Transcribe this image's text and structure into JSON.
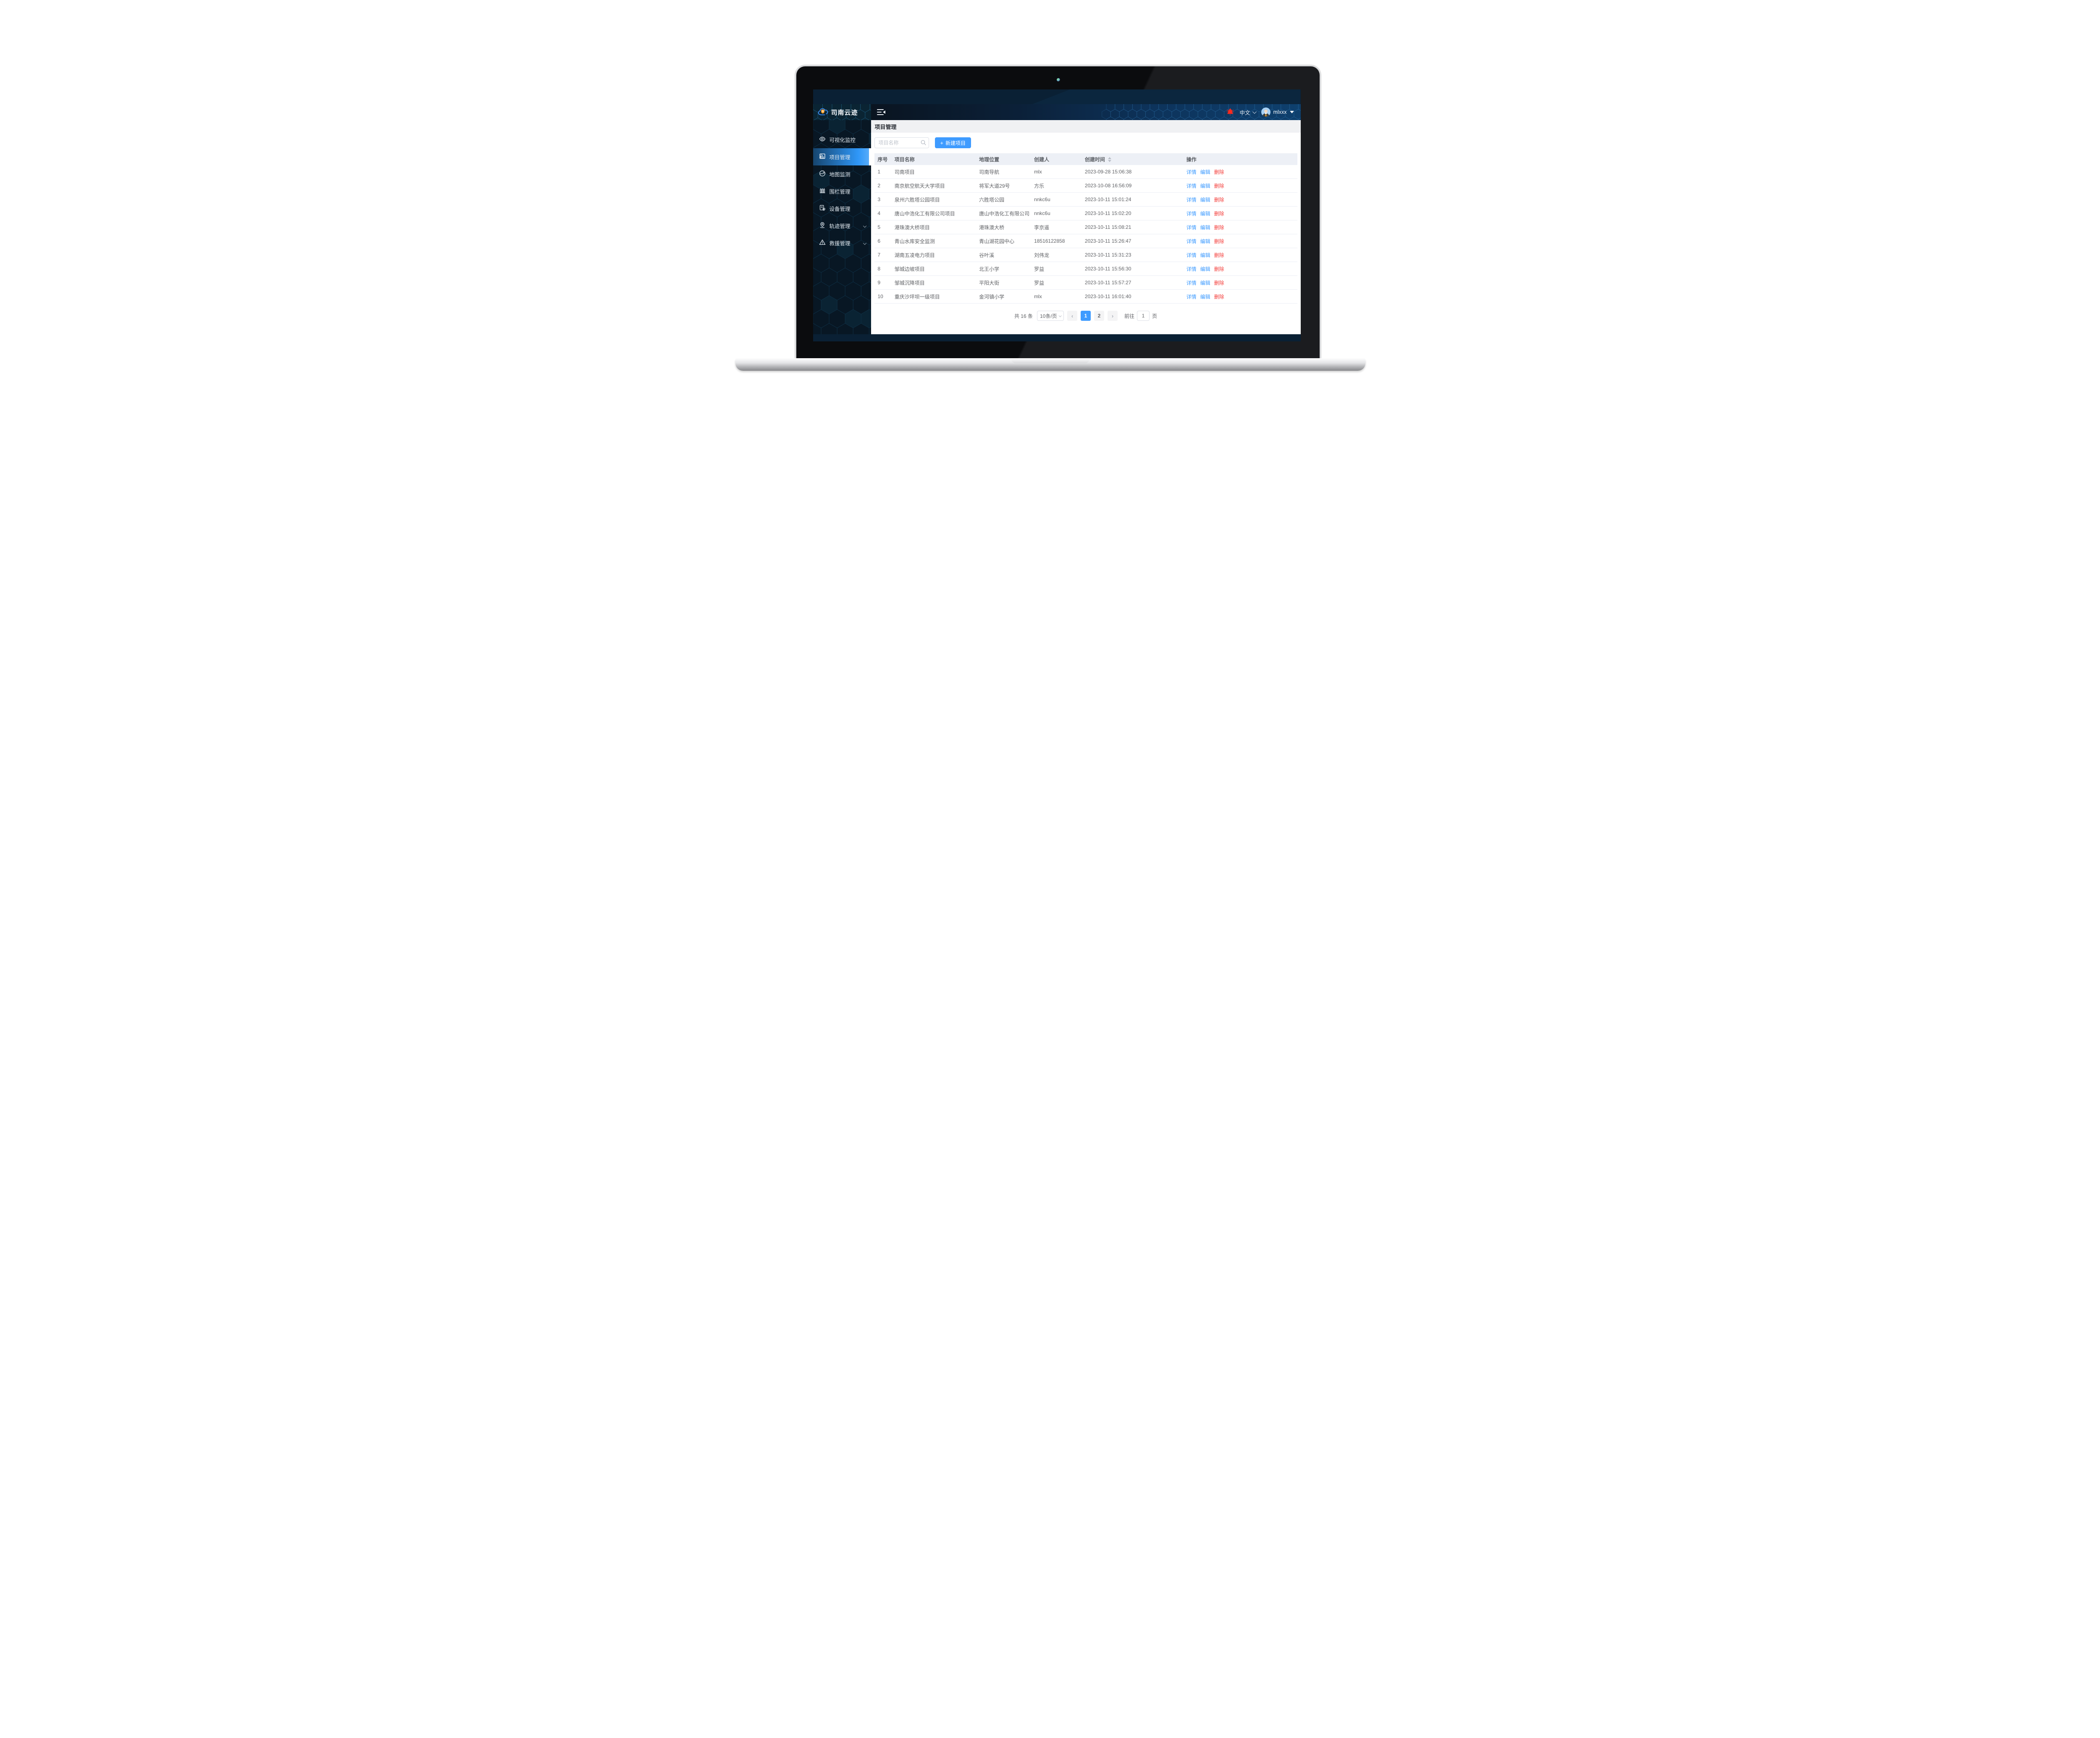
{
  "app": {
    "logo_title": "司南云迹",
    "language_label": "中文",
    "username": "mlxxx"
  },
  "colors": {
    "accent_blue": "#3e9bff",
    "danger_red": "#f4403d",
    "header_navy": "#0e406e",
    "sidebar_dark": "#081724",
    "alarm_red": "#fa2a1e"
  },
  "sidebar": {
    "items": [
      {
        "label": "可视化监控",
        "icon": "eye-icon",
        "selected": false,
        "has_chevron": false
      },
      {
        "label": "项目管理",
        "icon": "project-chart-icon",
        "selected": true,
        "has_chevron": false
      },
      {
        "label": "地图监测",
        "icon": "map-globe-icon",
        "selected": false,
        "has_chevron": false
      },
      {
        "label": "围栏管理",
        "icon": "fence-icon",
        "selected": false,
        "has_chevron": false
      },
      {
        "label": "设备管理",
        "icon": "device-icon",
        "selected": false,
        "has_chevron": false
      },
      {
        "label": "轨迹管理",
        "icon": "track-pin-icon",
        "selected": false,
        "has_chevron": true
      },
      {
        "label": "救援管理",
        "icon": "rescue-warning-icon",
        "selected": false,
        "has_chevron": true
      }
    ]
  },
  "breadcrumb": {
    "title": "项目管理"
  },
  "toolbar": {
    "search_placeholder": "项目名称",
    "new_project_label": "新建项目",
    "plus_sign": "+"
  },
  "table": {
    "columns": [
      "序号",
      "项目名称",
      "地理位置",
      "创建人",
      "创建时间",
      "操作"
    ],
    "sorted_column": "创建时间",
    "actions": [
      "详情",
      "编辑",
      "删除"
    ],
    "rows": [
      {
        "index": "1",
        "name": "司南项目",
        "location": "司南导航",
        "creator": "mlx",
        "created": "2023-09-28 15:06:38"
      },
      {
        "index": "2",
        "name": "南京航空航天大学项目",
        "location": "将军大道29号",
        "creator": "方乐",
        "created": "2023-10-08 16:56:09"
      },
      {
        "index": "3",
        "name": "泉州六胜塔公园项目",
        "location": "六胜塔公园",
        "creator": "nnkc6u",
        "created": "2023-10-11 15:01:24"
      },
      {
        "index": "4",
        "name": "唐山中浩化工有限公司项目",
        "location": "唐山中浩化工有限公司",
        "creator": "nnkc6u",
        "created": "2023-10-11 15:02:20"
      },
      {
        "index": "5",
        "name": "港珠澳大桥项目",
        "location": "港珠澳大桥",
        "creator": "李京遥",
        "created": "2023-10-11 15:08:21"
      },
      {
        "index": "6",
        "name": "青山水库安全监测",
        "location": "青山湖花园中心",
        "creator": "18516122858",
        "created": "2023-10-11 15:26:47"
      },
      {
        "index": "7",
        "name": "湖南五凌电力项目",
        "location": "谷叶溪",
        "creator": "刘伟龙",
        "created": "2023-10-11 15:31:23"
      },
      {
        "index": "8",
        "name": "邹城边坡项目",
        "location": "北王小学",
        "creator": "罗益",
        "created": "2023-10-11 15:56:30"
      },
      {
        "index": "9",
        "name": "邹城沉降项目",
        "location": "平阳大街",
        "creator": "罗益",
        "created": "2023-10-11 15:57:27"
      },
      {
        "index": "10",
        "name": "重庆沙坪坝一级项目",
        "location": "金河镇小学",
        "creator": "mlx",
        "created": "2023-10-11 16:01:40"
      }
    ]
  },
  "pagination": {
    "total_label": "共 16 条",
    "page_size_label": "10条/页",
    "pages": [
      "1",
      "2"
    ],
    "current_page": "1",
    "goto_label": "前往",
    "goto_value": "1",
    "page_unit": "页"
  }
}
